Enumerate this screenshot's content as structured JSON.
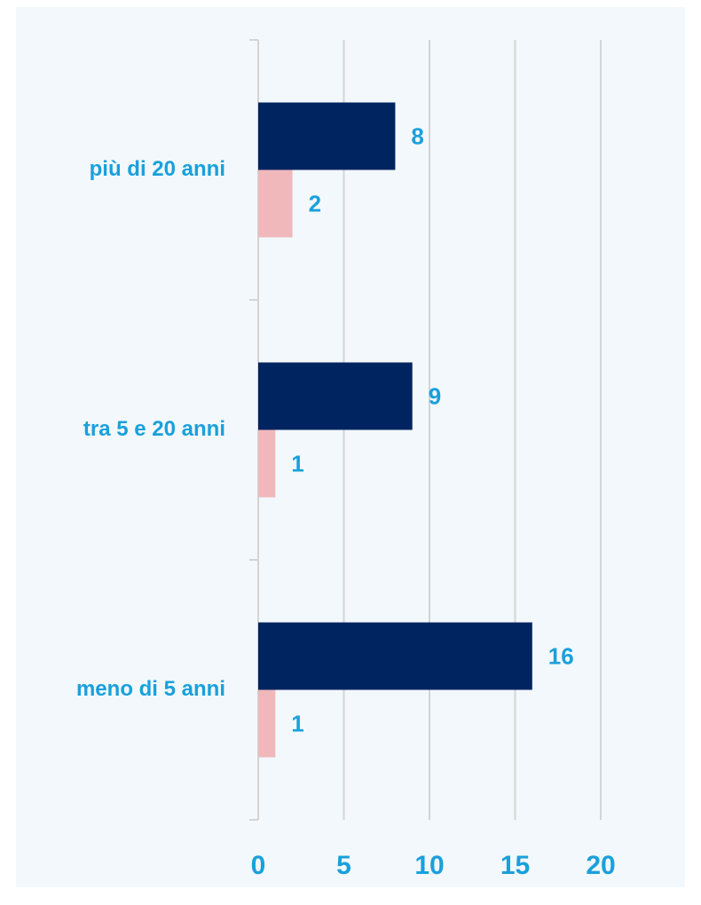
{
  "chart_data": {
    "type": "bar",
    "orientation": "horizontal",
    "categories": [
      "più di 20 anni",
      "tra 5 e 20 anni",
      "meno di 5 anni"
    ],
    "series": [
      {
        "color": "#002460",
        "values": [
          8,
          9,
          16
        ]
      },
      {
        "color": "#f0b8bb",
        "values": [
          2,
          1,
          1
        ]
      }
    ],
    "xlim": [
      0,
      20
    ],
    "xticks": [
      0,
      5,
      10,
      15,
      20
    ],
    "grid": true
  }
}
